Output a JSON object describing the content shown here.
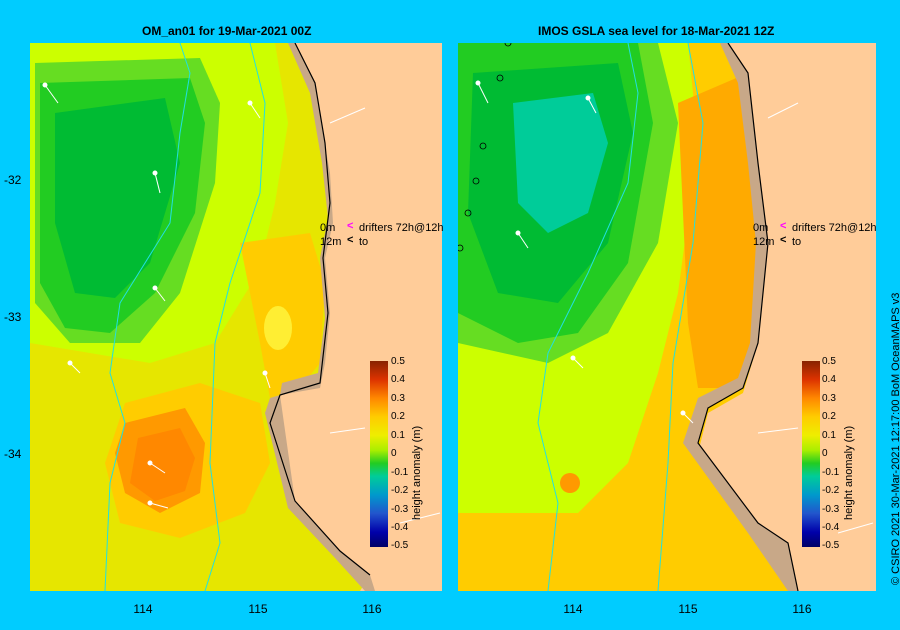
{
  "colors": {
    "background": "#00ccff",
    "land": "#ffcc99",
    "shelf": "#c8a888",
    "coast": "#000000",
    "isobath": "#22e0e0"
  },
  "left_panel": {
    "title": "OM_an01  for 19-Mar-2021 00Z"
  },
  "right_panel": {
    "title": "IMOS GSLA sea level  for 18-Mar-2021 12Z"
  },
  "axes": {
    "y_ticks": [
      "-32",
      "-33",
      "-34"
    ],
    "left_x_ticks": [
      "114",
      "115",
      "116"
    ],
    "right_x_ticks": [
      "114",
      "115",
      "116"
    ]
  },
  "legend": {
    "row1_depth": "0m",
    "row1_text": "drifters 72h@12h",
    "row2_depth": "12m",
    "row2_text": "to"
  },
  "colorbar": {
    "title": "height anomaly (m)",
    "labels": [
      "0.5",
      "0.4",
      "0.3",
      "0.2",
      "0.1",
      "0",
      "-0.1",
      "-0.2",
      "-0.3",
      "-0.4",
      "-0.5"
    ]
  },
  "credit": "© CSIRO 2021   30-Mar-2021 12:17:00 BoM OceanMAPS v3"
}
